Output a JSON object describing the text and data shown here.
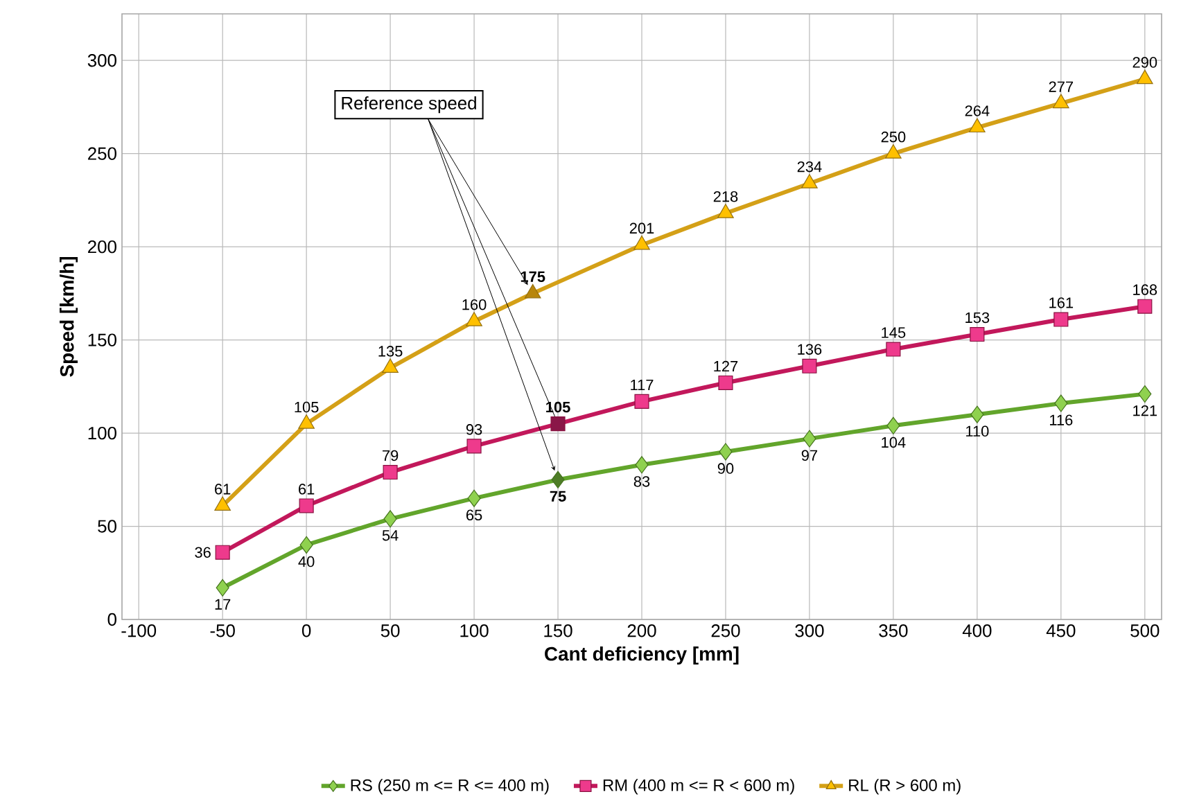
{
  "chart_data": {
    "type": "line",
    "xlabel": "Cant deficiency [mm]",
    "ylabel": "Speed [km/h]",
    "xlim": [
      -110,
      510
    ],
    "xticks": [
      -100,
      -50,
      0,
      50,
      100,
      150,
      200,
      250,
      300,
      350,
      400,
      450,
      500
    ],
    "ylim": [
      0,
      325
    ],
    "yticks": [
      0,
      50,
      100,
      150,
      200,
      250,
      300
    ],
    "grid": true,
    "legend": "bottom",
    "annotations": [
      {
        "text": "Reference speed",
        "x": 150,
        "y": 105
      }
    ],
    "series": [
      {
        "name": "RS (250 m <= R <= 400 m)",
        "color": "#62a52b",
        "marker": "diamond",
        "x": [
          -50,
          0,
          50,
          100,
          150,
          200,
          250,
          300,
          350,
          400,
          450,
          500
        ],
        "values": [
          17,
          40,
          54,
          65,
          75,
          83,
          90,
          97,
          104,
          110,
          116,
          121
        ],
        "colors": [
          "#8fd14f",
          "#8fd14f",
          "#8fd14f",
          "#8fd14f",
          "#4e7d26",
          "#8fd14f",
          "#8fd14f",
          "#8fd14f",
          "#8fd14f",
          "#8fd14f",
          "#8fd14f",
          "#8fd14f"
        ],
        "value_labels": [
          "17",
          "40",
          "54",
          "65",
          "**75**",
          "83",
          "90",
          "97",
          "104",
          "110",
          "116",
          "121"
        ]
      },
      {
        "name": "RM (400 m <= R < 600 m)",
        "color": "#c2185b",
        "marker": "square",
        "x": [
          -50,
          0,
          50,
          100,
          150,
          200,
          250,
          300,
          350,
          400,
          450,
          500
        ],
        "values": [
          36,
          61,
          79,
          93,
          105,
          117,
          127,
          136,
          145,
          153,
          161,
          168
        ],
        "colors": [
          "#ee3a8c",
          "#ee3a8c",
          "#ee3a8c",
          "#ee3a8c",
          "#8a1748",
          "#ee3a8c",
          "#ee3a8c",
          "#ee3a8c",
          "#ee3a8c",
          "#ee3a8c",
          "#ee3a8c",
          "#ee3a8c"
        ],
        "value_labels": [
          "36",
          "61",
          "79",
          "93",
          "**105**",
          "117",
          "127",
          "136",
          "145",
          "153",
          "161",
          "168"
        ]
      },
      {
        "name": "RL (R > 600 m)",
        "color": "#d4a017",
        "marker": "triangle",
        "x": [
          -50,
          0,
          50,
          100,
          135,
          200,
          250,
          300,
          350,
          400,
          450,
          500
        ],
        "values": [
          61,
          105,
          135,
          160,
          175,
          201,
          218,
          234,
          250,
          264,
          277,
          290
        ],
        "colors": [
          "#ffc000",
          "#ffc000",
          "#ffc000",
          "#ffc000",
          "#b8860b",
          "#ffc000",
          "#ffc000",
          "#ffc000",
          "#ffc000",
          "#ffc000",
          "#ffc000",
          "#ffc000"
        ],
        "value_labels": [
          "61",
          "105",
          "135",
          "160",
          "**175**",
          "201",
          "218",
          "234",
          "250",
          "264",
          "277",
          "290"
        ]
      }
    ]
  }
}
